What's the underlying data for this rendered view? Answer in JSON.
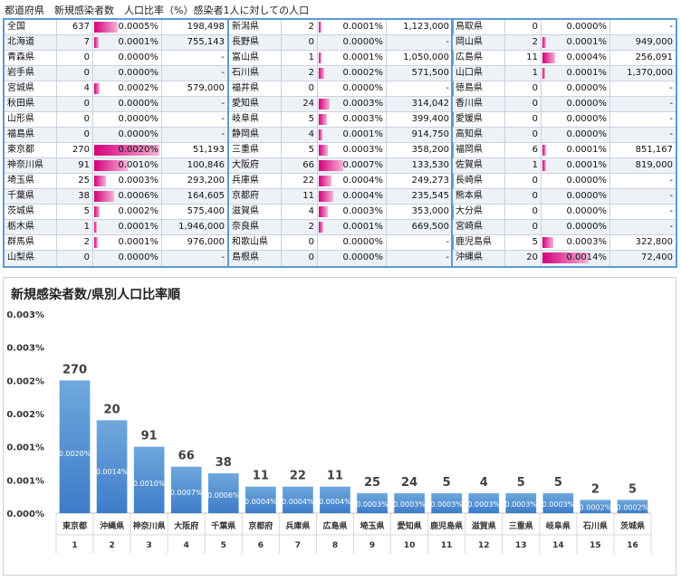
{
  "header": "都道府県　新規感染者数　人口比率（%）感染者1人に対しての人口",
  "tables": [
    [
      {
        "name": "全国",
        "count": "637",
        "pct": "0.0005%",
        "pop": "198,498",
        "bar": 0.36
      },
      {
        "name": "北海道",
        "count": "7",
        "pct": "0.0001%",
        "pop": "755,143",
        "bar": 0.07
      },
      {
        "name": "青森県",
        "count": "0",
        "pct": "0.0000%",
        "pop": "-",
        "bar": 0
      },
      {
        "name": "岩手県",
        "count": "0",
        "pct": "0.0000%",
        "pop": "-",
        "bar": 0
      },
      {
        "name": "宮城県",
        "count": "4",
        "pct": "0.0002%",
        "pop": "579,000",
        "bar": 0.09
      },
      {
        "name": "秋田県",
        "count": "0",
        "pct": "0.0000%",
        "pop": "-",
        "bar": 0
      },
      {
        "name": "山形県",
        "count": "0",
        "pct": "0.0000%",
        "pop": "-",
        "bar": 0
      },
      {
        "name": "福島県",
        "count": "0",
        "pct": "0.0000%",
        "pop": "-",
        "bar": 0
      },
      {
        "name": "東京都",
        "count": "270",
        "pct": "0.0020%",
        "pop": "51,193",
        "bar": 1.0
      },
      {
        "name": "神奈川県",
        "count": "91",
        "pct": "0.0010%",
        "pop": "100,846",
        "bar": 0.52
      },
      {
        "name": "埼玉県",
        "count": "25",
        "pct": "0.0003%",
        "pop": "293,200",
        "bar": 0.18
      },
      {
        "name": "千葉県",
        "count": "38",
        "pct": "0.0006%",
        "pop": "164,605",
        "bar": 0.31
      },
      {
        "name": "茨城県",
        "count": "5",
        "pct": "0.0002%",
        "pop": "575,400",
        "bar": 0.09
      },
      {
        "name": "栃木県",
        "count": "1",
        "pct": "0.0001%",
        "pop": "1,946,000",
        "bar": 0.03
      },
      {
        "name": "群馬県",
        "count": "2",
        "pct": "0.0001%",
        "pop": "976,000",
        "bar": 0.05
      },
      {
        "name": "山梨県",
        "count": "0",
        "pct": "0.0000%",
        "pop": "-",
        "bar": 0
      }
    ],
    [
      {
        "name": "新潟県",
        "count": "2",
        "pct": "0.0001%",
        "pop": "1,123,000",
        "bar": 0.04
      },
      {
        "name": "長野県",
        "count": "0",
        "pct": "0.0000%",
        "pop": "-",
        "bar": 0
      },
      {
        "name": "富山県",
        "count": "1",
        "pct": "0.0001%",
        "pop": "1,050,000",
        "bar": 0.04
      },
      {
        "name": "石川県",
        "count": "2",
        "pct": "0.0002%",
        "pop": "571,500",
        "bar": 0.09
      },
      {
        "name": "福井県",
        "count": "0",
        "pct": "0.0000%",
        "pop": "-",
        "bar": 0
      },
      {
        "name": "愛知県",
        "count": "24",
        "pct": "0.0003%",
        "pop": "314,042",
        "bar": 0.16
      },
      {
        "name": "岐阜県",
        "count": "5",
        "pct": "0.0003%",
        "pop": "399,400",
        "bar": 0.13
      },
      {
        "name": "静岡県",
        "count": "4",
        "pct": "0.0001%",
        "pop": "914,750",
        "bar": 0.06
      },
      {
        "name": "三重県",
        "count": "5",
        "pct": "0.0003%",
        "pop": "358,200",
        "bar": 0.14
      },
      {
        "name": "大阪府",
        "count": "66",
        "pct": "0.0007%",
        "pop": "133,530",
        "bar": 0.38
      },
      {
        "name": "兵庫県",
        "count": "22",
        "pct": "0.0004%",
        "pop": "249,273",
        "bar": 0.2
      },
      {
        "name": "京都府",
        "count": "11",
        "pct": "0.0004%",
        "pop": "235,545",
        "bar": 0.22
      },
      {
        "name": "滋賀県",
        "count": "4",
        "pct": "0.0003%",
        "pop": "353,000",
        "bar": 0.14
      },
      {
        "name": "奈良県",
        "count": "2",
        "pct": "0.0001%",
        "pop": "669,500",
        "bar": 0.07
      },
      {
        "name": "和歌山県",
        "count": "0",
        "pct": "0.0000%",
        "pop": "-",
        "bar": 0
      },
      {
        "name": "島根県",
        "count": "0",
        "pct": "0.0000%",
        "pop": "-",
        "bar": 0
      }
    ],
    [
      {
        "name": "鳥取県",
        "count": "0",
        "pct": "0.0000%",
        "pop": "-",
        "bar": 0
      },
      {
        "name": "岡山県",
        "count": "2",
        "pct": "0.0001%",
        "pop": "949,000",
        "bar": 0.05
      },
      {
        "name": "広島県",
        "count": "11",
        "pct": "0.0004%",
        "pop": "256,091",
        "bar": 0.2
      },
      {
        "name": "山口県",
        "count": "1",
        "pct": "0.0001%",
        "pop": "1,370,000",
        "bar": 0.04
      },
      {
        "name": "徳島県",
        "count": "0",
        "pct": "0.0000%",
        "pop": "-",
        "bar": 0
      },
      {
        "name": "香川県",
        "count": "0",
        "pct": "0.0000%",
        "pop": "-",
        "bar": 0
      },
      {
        "name": "愛媛県",
        "count": "0",
        "pct": "0.0000%",
        "pop": "-",
        "bar": 0
      },
      {
        "name": "高知県",
        "count": "0",
        "pct": "0.0000%",
        "pop": "-",
        "bar": 0
      },
      {
        "name": "福岡県",
        "count": "6",
        "pct": "0.0001%",
        "pop": "851,167",
        "bar": 0.06
      },
      {
        "name": "佐賀県",
        "count": "1",
        "pct": "0.0001%",
        "pop": "819,000",
        "bar": 0.06
      },
      {
        "name": "長崎県",
        "count": "0",
        "pct": "0.0000%",
        "pop": "-",
        "bar": 0
      },
      {
        "name": "熊本県",
        "count": "0",
        "pct": "0.0000%",
        "pop": "-",
        "bar": 0
      },
      {
        "name": "大分県",
        "count": "0",
        "pct": "0.0000%",
        "pop": "-",
        "bar": 0
      },
      {
        "name": "宮崎県",
        "count": "0",
        "pct": "0.0000%",
        "pop": "-",
        "bar": 0
      },
      {
        "name": "鹿児島県",
        "count": "5",
        "pct": "0.0003%",
        "pop": "322,800",
        "bar": 0.16
      },
      {
        "name": "沖縄県",
        "count": "20",
        "pct": "0.0014%",
        "pop": "72,400",
        "bar": 0.71
      }
    ]
  ],
  "chart_data": {
    "type": "bar",
    "title": "新規感染者数/県別人口比率順",
    "categories": [
      "東京都",
      "沖縄県",
      "神奈川県",
      "大阪府",
      "千葉県",
      "京都府",
      "兵庫県",
      "広島県",
      "埼玉県",
      "愛知県",
      "鹿児島県",
      "滋賀県",
      "三重県",
      "岐阜県",
      "石川県",
      "茨城県"
    ],
    "ranks": [
      "1",
      "2",
      "3",
      "4",
      "5",
      "6",
      "7",
      "8",
      "9",
      "10",
      "11",
      "12",
      "13",
      "14",
      "15",
      "16"
    ],
    "values": [
      0.002,
      0.0014,
      0.001,
      0.0007,
      0.0006,
      0.0004,
      0.0004,
      0.0004,
      0.0003,
      0.0003,
      0.0003,
      0.0003,
      0.0003,
      0.0003,
      0.0002,
      0.0002
    ],
    "value_labels": [
      "0.0020%",
      "0.0014%",
      "0.0010%",
      "0.0007%",
      "0.0006%",
      "0.0004%",
      "0.0004%",
      "0.0004%",
      "0.0003%",
      "0.0003%",
      "0.0003%",
      "0.0003%",
      "0.0003%",
      "0.0003%",
      "0.0002%",
      "0.0002%"
    ],
    "counts": [
      "270",
      "20",
      "91",
      "66",
      "38",
      "11",
      "22",
      "11",
      "25",
      "24",
      "5",
      "4",
      "5",
      "5",
      "2",
      "5"
    ],
    "yticks": [
      "0.000%",
      "0.001%",
      "0.001%",
      "0.002%",
      "0.002%",
      "0.003%",
      "0.003%"
    ],
    "ylim": [
      0,
      0.003
    ],
    "grid": false,
    "colors": {
      "bar_top": "#6fa8dc",
      "bar_bottom": "#3d7cc9",
      "count_label": "#404040",
      "value_label": "#ffffff"
    }
  }
}
